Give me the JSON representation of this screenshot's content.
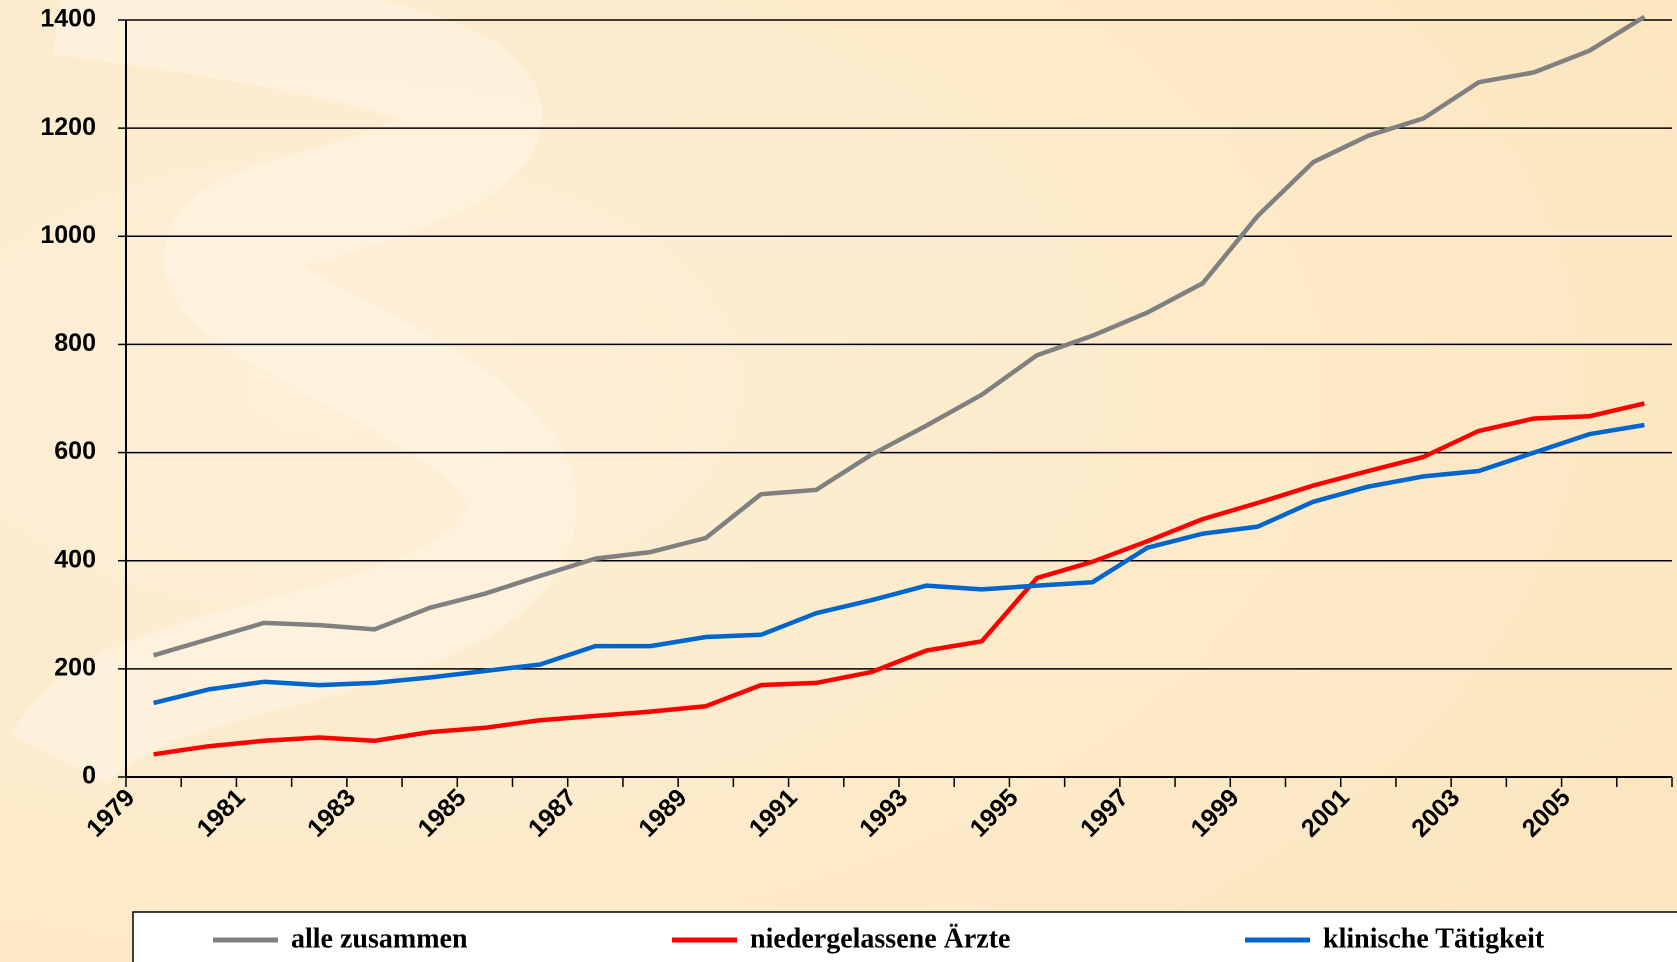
{
  "chart_data": {
    "type": "line",
    "categories": [
      "1979",
      null,
      "1981",
      null,
      "1983",
      null,
      "1985",
      null,
      "1987",
      null,
      "1989",
      null,
      "1991",
      null,
      "1993",
      null,
      "1995",
      null,
      "1997",
      null,
      "1999",
      null,
      "2001",
      null,
      "2003",
      null,
      "2005",
      null
    ],
    "series": [
      {
        "name": "alle zusammen",
        "color": "#808080",
        "values": [
          225,
          255,
          285,
          281,
          273,
          313,
          339,
          372,
          404,
          416,
          442,
          523,
          531,
          596,
          650,
          707,
          780,
          816,
          859,
          913,
          1038,
          1137,
          1186,
          1218,
          1285,
          1303,
          1343,
          1406
        ]
      },
      {
        "name": "niedergelassene Ärzte",
        "color": "#ff0000",
        "values": [
          42,
          57,
          67,
          73,
          67,
          83,
          91,
          105,
          113,
          121,
          131,
          170,
          174,
          194,
          234,
          251,
          368,
          398,
          436,
          477,
          507,
          539,
          566,
          592,
          640,
          663,
          667,
          691
        ]
      },
      {
        "name": "klinische Tätigkeit",
        "color": "#0066cc",
        "values": [
          137,
          162,
          176,
          170,
          174,
          184,
          196,
          208,
          242,
          242,
          259,
          263,
          303,
          327,
          354,
          347,
          354,
          360,
          424,
          450,
          463,
          509,
          537,
          556,
          566,
          600,
          634,
          651
        ]
      }
    ],
    "ylim": [
      0,
      1400
    ],
    "yticks": [
      0,
      200,
      400,
      600,
      800,
      1000,
      1200,
      1400
    ],
    "grid": true,
    "legend": "bottom"
  }
}
